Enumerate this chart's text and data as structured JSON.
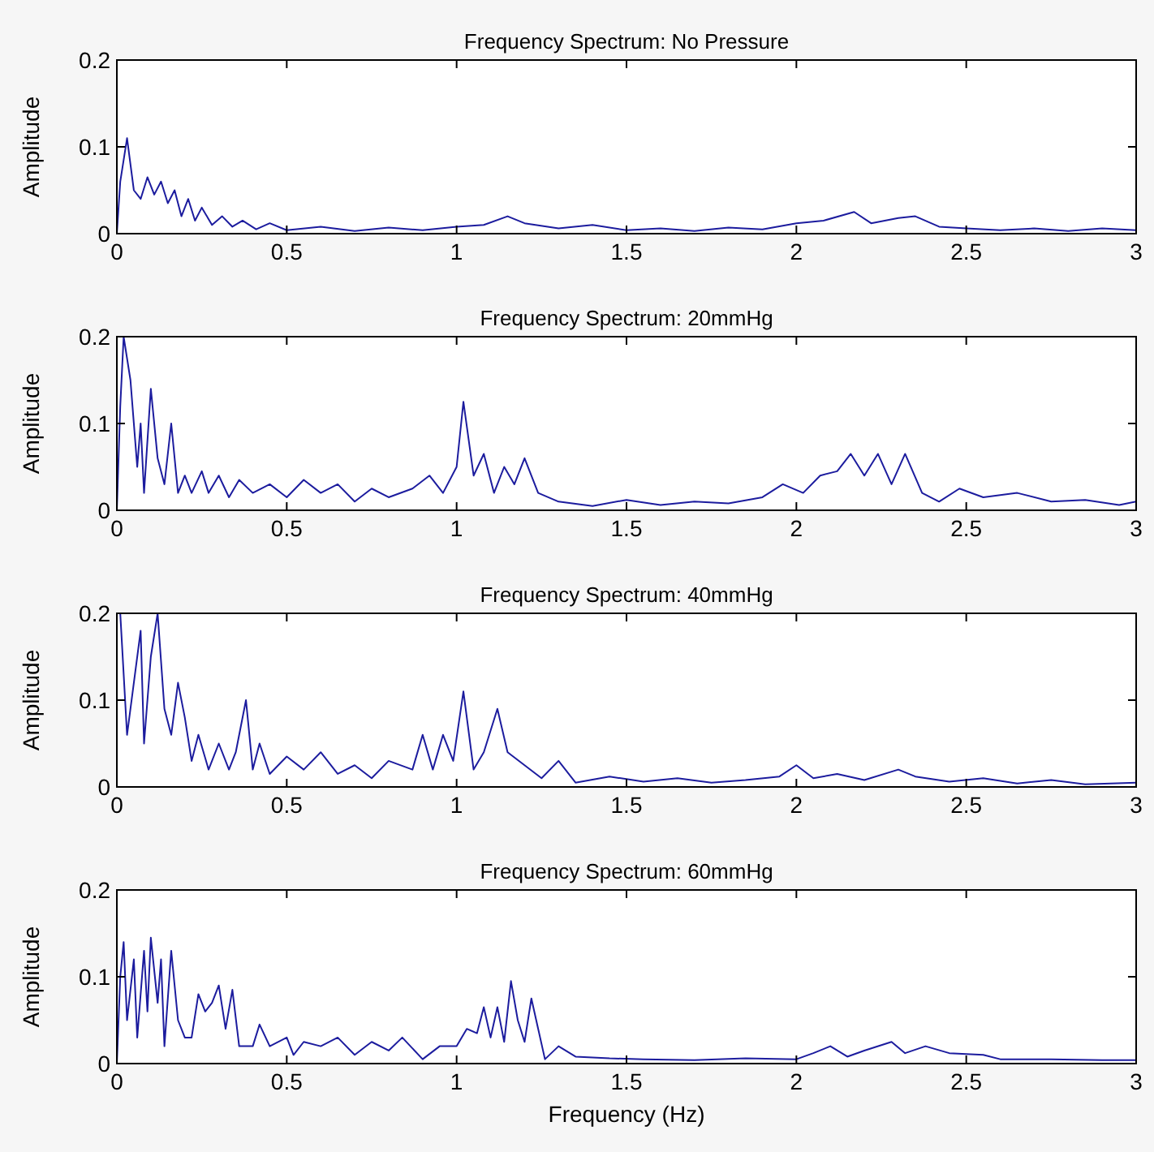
{
  "chart_data": [
    {
      "type": "line",
      "title": "Frequency Spectrum: No Pressure",
      "ylabel": "Amplitude",
      "xlim": [
        0,
        3
      ],
      "xticks": [
        0,
        0.5,
        1,
        1.5,
        2,
        2.5,
        3
      ],
      "ylim": [
        0,
        0.2
      ],
      "yticks": [
        0,
        0.1,
        0.2
      ],
      "series": [
        {
          "color": "#1c1c9e",
          "x": [
            0,
            0.01,
            0.03,
            0.05,
            0.07,
            0.09,
            0.11,
            0.13,
            0.15,
            0.17,
            0.19,
            0.21,
            0.23,
            0.25,
            0.28,
            0.31,
            0.34,
            0.37,
            0.41,
            0.45,
            0.5,
            0.6,
            0.7,
            0.8,
            0.9,
            1.0,
            1.08,
            1.15,
            1.2,
            1.3,
            1.4,
            1.5,
            1.6,
            1.7,
            1.8,
            1.9,
            2.0,
            2.08,
            2.17,
            2.22,
            2.3,
            2.35,
            2.42,
            2.5,
            2.6,
            2.7,
            2.8,
            2.9,
            3.0
          ],
          "values": [
            0,
            0.06,
            0.11,
            0.05,
            0.04,
            0.065,
            0.045,
            0.06,
            0.035,
            0.05,
            0.02,
            0.04,
            0.015,
            0.03,
            0.01,
            0.02,
            0.008,
            0.015,
            0.005,
            0.012,
            0.004,
            0.008,
            0.003,
            0.007,
            0.004,
            0.008,
            0.01,
            0.02,
            0.012,
            0.006,
            0.01,
            0.004,
            0.006,
            0.003,
            0.007,
            0.005,
            0.012,
            0.015,
            0.025,
            0.012,
            0.018,
            0.02,
            0.008,
            0.006,
            0.004,
            0.006,
            0.003,
            0.006,
            0.004
          ]
        }
      ]
    },
    {
      "type": "line",
      "title": "Frequency Spectrum: 20mmHg",
      "ylabel": "Amplitude",
      "xlim": [
        0,
        3
      ],
      "xticks": [
        0,
        0.5,
        1,
        1.5,
        2,
        2.5,
        3
      ],
      "ylim": [
        0,
        0.2
      ],
      "yticks": [
        0,
        0.1,
        0.2
      ],
      "series": [
        {
          "color": "#1c1c9e",
          "x": [
            0,
            0.01,
            0.02,
            0.04,
            0.06,
            0.07,
            0.08,
            0.1,
            0.12,
            0.14,
            0.16,
            0.18,
            0.2,
            0.22,
            0.25,
            0.27,
            0.3,
            0.33,
            0.36,
            0.4,
            0.45,
            0.5,
            0.55,
            0.6,
            0.65,
            0.7,
            0.75,
            0.8,
            0.87,
            0.92,
            0.96,
            1.0,
            1.02,
            1.05,
            1.08,
            1.11,
            1.14,
            1.17,
            1.2,
            1.24,
            1.3,
            1.4,
            1.5,
            1.6,
            1.7,
            1.8,
            1.9,
            1.96,
            2.02,
            2.07,
            2.12,
            2.16,
            2.2,
            2.24,
            2.28,
            2.32,
            2.37,
            2.42,
            2.48,
            2.55,
            2.65,
            2.75,
            2.85,
            2.95,
            3.0
          ],
          "values": [
            0,
            0.12,
            0.2,
            0.15,
            0.05,
            0.1,
            0.02,
            0.14,
            0.06,
            0.03,
            0.1,
            0.02,
            0.04,
            0.02,
            0.045,
            0.02,
            0.04,
            0.015,
            0.035,
            0.02,
            0.03,
            0.015,
            0.035,
            0.02,
            0.03,
            0.01,
            0.025,
            0.015,
            0.025,
            0.04,
            0.02,
            0.05,
            0.125,
            0.04,
            0.065,
            0.02,
            0.05,
            0.03,
            0.06,
            0.02,
            0.01,
            0.005,
            0.012,
            0.006,
            0.01,
            0.008,
            0.015,
            0.03,
            0.02,
            0.04,
            0.045,
            0.065,
            0.04,
            0.065,
            0.03,
            0.065,
            0.02,
            0.01,
            0.025,
            0.015,
            0.02,
            0.01,
            0.012,
            0.006,
            0.01
          ]
        }
      ]
    },
    {
      "type": "line",
      "title": "Frequency Spectrum: 40mmHg",
      "ylabel": "Amplitude",
      "xlim": [
        0,
        3
      ],
      "xticks": [
        0,
        0.5,
        1,
        1.5,
        2,
        2.5,
        3
      ],
      "ylim": [
        0,
        0.2
      ],
      "yticks": [
        0,
        0.1,
        0.2
      ],
      "series": [
        {
          "color": "#1c1c9e",
          "x": [
            0.01,
            0.03,
            0.05,
            0.07,
            0.08,
            0.1,
            0.12,
            0.14,
            0.16,
            0.18,
            0.2,
            0.22,
            0.24,
            0.27,
            0.3,
            0.33,
            0.35,
            0.38,
            0.4,
            0.42,
            0.45,
            0.5,
            0.55,
            0.6,
            0.65,
            0.7,
            0.75,
            0.8,
            0.87,
            0.9,
            0.93,
            0.96,
            0.99,
            1.02,
            1.05,
            1.08,
            1.12,
            1.15,
            1.2,
            1.25,
            1.3,
            1.35,
            1.45,
            1.55,
            1.65,
            1.75,
            1.85,
            1.95,
            2.0,
            2.05,
            2.12,
            2.2,
            2.3,
            2.35,
            2.45,
            2.55,
            2.65,
            2.75,
            2.85,
            3.0
          ],
          "values": [
            0.2,
            0.06,
            0.12,
            0.18,
            0.05,
            0.15,
            0.2,
            0.09,
            0.06,
            0.12,
            0.08,
            0.03,
            0.06,
            0.02,
            0.05,
            0.02,
            0.04,
            0.1,
            0.02,
            0.05,
            0.015,
            0.035,
            0.02,
            0.04,
            0.015,
            0.025,
            0.01,
            0.03,
            0.02,
            0.06,
            0.02,
            0.06,
            0.03,
            0.11,
            0.02,
            0.04,
            0.09,
            0.04,
            0.025,
            0.01,
            0.03,
            0.005,
            0.012,
            0.006,
            0.01,
            0.005,
            0.008,
            0.012,
            0.025,
            0.01,
            0.015,
            0.008,
            0.02,
            0.012,
            0.006,
            0.01,
            0.004,
            0.008,
            0.003,
            0.005
          ]
        }
      ]
    },
    {
      "type": "line",
      "title": "Frequency Spectrum: 60mmHg",
      "xlabel": "Frequency (Hz)",
      "ylabel": "Amplitude",
      "xlim": [
        0,
        3
      ],
      "xticks": [
        0,
        0.5,
        1,
        1.5,
        2,
        2.5,
        3
      ],
      "ylim": [
        0,
        0.2
      ],
      "yticks": [
        0,
        0.1,
        0.2
      ],
      "series": [
        {
          "color": "#1c1c9e",
          "x": [
            0,
            0.01,
            0.02,
            0.03,
            0.05,
            0.06,
            0.08,
            0.09,
            0.1,
            0.12,
            0.13,
            0.14,
            0.16,
            0.18,
            0.2,
            0.22,
            0.24,
            0.26,
            0.28,
            0.3,
            0.32,
            0.34,
            0.36,
            0.4,
            0.42,
            0.45,
            0.5,
            0.52,
            0.55,
            0.6,
            0.65,
            0.7,
            0.75,
            0.8,
            0.84,
            0.9,
            0.95,
            1.0,
            1.03,
            1.06,
            1.08,
            1.1,
            1.12,
            1.14,
            1.16,
            1.18,
            1.2,
            1.22,
            1.24,
            1.26,
            1.3,
            1.35,
            1.45,
            1.55,
            1.7,
            1.85,
            2.0,
            2.05,
            2.1,
            2.15,
            2.2,
            2.28,
            2.32,
            2.38,
            2.45,
            2.55,
            2.6,
            2.75,
            2.9,
            3.0
          ],
          "values": [
            0,
            0.1,
            0.14,
            0.05,
            0.12,
            0.03,
            0.13,
            0.06,
            0.145,
            0.07,
            0.12,
            0.02,
            0.13,
            0.05,
            0.03,
            0.03,
            0.08,
            0.06,
            0.07,
            0.09,
            0.04,
            0.085,
            0.02,
            0.02,
            0.045,
            0.02,
            0.03,
            0.01,
            0.025,
            0.02,
            0.03,
            0.01,
            0.025,
            0.015,
            0.03,
            0.005,
            0.02,
            0.02,
            0.04,
            0.035,
            0.065,
            0.03,
            0.065,
            0.025,
            0.095,
            0.05,
            0.025,
            0.075,
            0.04,
            0.005,
            0.02,
            0.008,
            0.006,
            0.005,
            0.004,
            0.006,
            0.005,
            0.012,
            0.02,
            0.008,
            0.015,
            0.025,
            0.012,
            0.02,
            0.012,
            0.01,
            0.005,
            0.005,
            0.004,
            0.004
          ]
        }
      ]
    }
  ]
}
